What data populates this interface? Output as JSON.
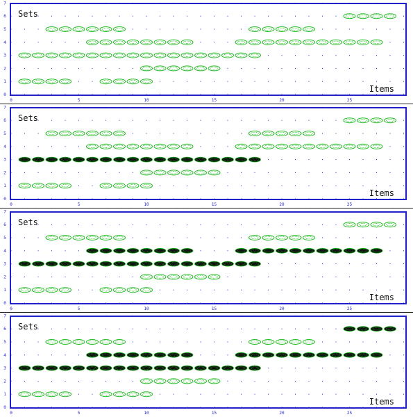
{
  "chart_data": [
    {
      "type": "scatter",
      "ylabel": "Sets",
      "xlabel": "Items",
      "xlim": [
        0,
        28
      ],
      "ylim": [
        0,
        7
      ],
      "xticks": [
        "0",
        "5",
        "10",
        "15",
        "20",
        "25"
      ],
      "yticks": [
        "0",
        "1",
        "2",
        "3",
        "4",
        "5",
        "6",
        "7"
      ],
      "grid": "dotted",
      "sets": [
        {
          "y": 1,
          "items": [
            1,
            2,
            3,
            4,
            7,
            8,
            9,
            10
          ],
          "highlight": false
        },
        {
          "y": 2,
          "items": [
            10,
            11,
            12,
            13,
            14,
            15
          ],
          "highlight": false
        },
        {
          "y": 3,
          "items": [
            1,
            2,
            3,
            4,
            5,
            6,
            7,
            8,
            9,
            10,
            11,
            12,
            13,
            14,
            15,
            16,
            17,
            18
          ],
          "highlight": false
        },
        {
          "y": 4,
          "items": [
            6,
            7,
            8,
            9,
            10,
            11,
            12,
            13,
            17,
            18,
            19,
            20,
            21,
            22,
            23,
            24,
            25,
            26,
            27
          ],
          "highlight": false
        },
        {
          "y": 5,
          "items": [
            3,
            4,
            5,
            6,
            7,
            8,
            18,
            19,
            20,
            21,
            22
          ],
          "highlight": false
        },
        {
          "y": 6,
          "items": [
            25,
            26,
            27,
            28
          ],
          "highlight": false
        }
      ]
    },
    {
      "type": "scatter",
      "ylabel": "Sets",
      "xlabel": "Items",
      "xlim": [
        0,
        28
      ],
      "ylim": [
        0,
        7
      ],
      "xticks": [
        "0",
        "5",
        "10",
        "15",
        "20",
        "25"
      ],
      "yticks": [
        "0",
        "1",
        "2",
        "3",
        "4",
        "5",
        "6",
        "7"
      ],
      "grid": "dotted",
      "sets": [
        {
          "y": 1,
          "items": [
            1,
            2,
            3,
            4,
            7,
            8,
            9,
            10
          ],
          "highlight": false
        },
        {
          "y": 2,
          "items": [
            10,
            11,
            12,
            13,
            14,
            15
          ],
          "highlight": false
        },
        {
          "y": 3,
          "items": [
            1,
            2,
            3,
            4,
            5,
            6,
            7,
            8,
            9,
            10,
            11,
            12,
            13,
            14,
            15,
            16,
            17,
            18
          ],
          "highlight": true
        },
        {
          "y": 4,
          "items": [
            6,
            7,
            8,
            9,
            10,
            11,
            12,
            13,
            17,
            18,
            19,
            20,
            21,
            22,
            23,
            24,
            25,
            26,
            27
          ],
          "highlight": false
        },
        {
          "y": 5,
          "items": [
            3,
            4,
            5,
            6,
            7,
            8,
            18,
            19,
            20,
            21,
            22
          ],
          "highlight": false
        },
        {
          "y": 6,
          "items": [
            25,
            26,
            27,
            28
          ],
          "highlight": false
        }
      ]
    },
    {
      "type": "scatter",
      "ylabel": "Sets",
      "xlabel": "Items",
      "xlim": [
        0,
        28
      ],
      "ylim": [
        0,
        7
      ],
      "xticks": [
        "0",
        "5",
        "10",
        "15",
        "20",
        "25"
      ],
      "yticks": [
        "0",
        "1",
        "2",
        "3",
        "4",
        "5",
        "6",
        "7"
      ],
      "grid": "dotted",
      "sets": [
        {
          "y": 1,
          "items": [
            1,
            2,
            3,
            4,
            7,
            8,
            9,
            10
          ],
          "highlight": false
        },
        {
          "y": 2,
          "items": [
            10,
            11,
            12,
            13,
            14,
            15
          ],
          "highlight": false
        },
        {
          "y": 3,
          "items": [
            1,
            2,
            3,
            4,
            5,
            6,
            7,
            8,
            9,
            10,
            11,
            12,
            13,
            14,
            15,
            16,
            17,
            18
          ],
          "highlight": true
        },
        {
          "y": 4,
          "items": [
            6,
            7,
            8,
            9,
            10,
            11,
            12,
            13,
            17,
            18,
            19,
            20,
            21,
            22,
            23,
            24,
            25,
            26,
            27
          ],
          "highlight": true
        },
        {
          "y": 5,
          "items": [
            3,
            4,
            5,
            6,
            7,
            8,
            18,
            19,
            20,
            21,
            22
          ],
          "highlight": false
        },
        {
          "y": 6,
          "items": [
            25,
            26,
            27,
            28
          ],
          "highlight": false
        }
      ]
    },
    {
      "type": "scatter",
      "ylabel": "Sets",
      "xlabel": "Items",
      "xlim": [
        0,
        28
      ],
      "ylim": [
        0,
        7
      ],
      "xticks": [
        "0",
        "5",
        "10",
        "15",
        "20",
        "25"
      ],
      "yticks": [
        "0",
        "1",
        "2",
        "3",
        "4",
        "5",
        "6",
        "7"
      ],
      "grid": "dotted",
      "sets": [
        {
          "y": 1,
          "items": [
            1,
            2,
            3,
            4,
            7,
            8,
            9,
            10
          ],
          "highlight": false
        },
        {
          "y": 2,
          "items": [
            10,
            11,
            12,
            13,
            14,
            15
          ],
          "highlight": false
        },
        {
          "y": 3,
          "items": [
            1,
            2,
            3,
            4,
            5,
            6,
            7,
            8,
            9,
            10,
            11,
            12,
            13,
            14,
            15,
            16,
            17,
            18
          ],
          "highlight": true
        },
        {
          "y": 4,
          "items": [
            6,
            7,
            8,
            9,
            10,
            11,
            12,
            13,
            17,
            18,
            19,
            20,
            21,
            22,
            23,
            24,
            25,
            26,
            27
          ],
          "highlight": true
        },
        {
          "y": 5,
          "items": [
            3,
            4,
            5,
            6,
            7,
            8,
            18,
            19,
            20,
            21,
            22
          ],
          "highlight": false
        },
        {
          "y": 6,
          "items": [
            25,
            26,
            27,
            28
          ],
          "highlight": true
        }
      ]
    }
  ],
  "colors": {
    "frame": "#2222cc",
    "tick_text": "#2222cc",
    "grid_dot": "#2222cc",
    "marker": "#22bb22",
    "marker_fill": "#ffffff",
    "marker_highlight": "#111111",
    "label_text": "#111111"
  }
}
